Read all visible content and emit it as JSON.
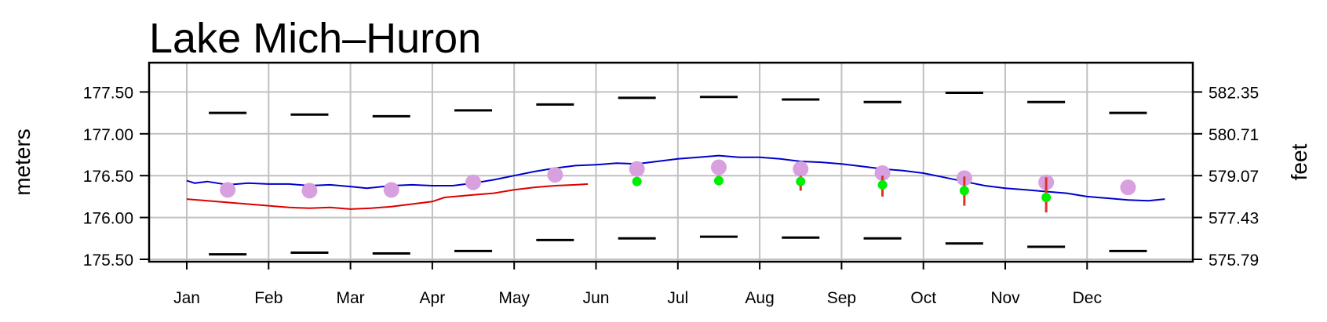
{
  "chart_data": {
    "type": "line",
    "title": "Lake Mich–Huron",
    "ylabel_left": "meters",
    "ylabel_right": "feet",
    "ylim": [
      175.5,
      177.85
    ],
    "y_ticks_left": [
      "177.50",
      "177.00",
      "176.50",
      "176.00",
      "175.50"
    ],
    "y_ticks_left_values": [
      177.5,
      177.0,
      176.5,
      176.0,
      175.5
    ],
    "y_ticks_right": [
      "582.35",
      "580.71",
      "579.07",
      "577.43",
      "575.79"
    ],
    "months": [
      "Jan",
      "Feb",
      "Mar",
      "Apr",
      "May",
      "Jun",
      "Jul",
      "Aug",
      "Sep",
      "Oct",
      "Nov",
      "Dec"
    ],
    "grid": true,
    "series": [
      {
        "kind": "line",
        "color": "#0000cc",
        "points": [
          [
            0.0,
            176.44
          ],
          [
            0.1,
            176.41
          ],
          [
            0.25,
            176.43
          ],
          [
            0.5,
            176.39
          ],
          [
            0.75,
            176.41
          ],
          [
            1.0,
            176.4
          ],
          [
            1.25,
            176.4
          ],
          [
            1.5,
            176.38
          ],
          [
            1.75,
            176.39
          ],
          [
            2.0,
            176.37
          ],
          [
            2.2,
            176.35
          ],
          [
            2.5,
            176.38
          ],
          [
            2.75,
            176.39
          ],
          [
            3.0,
            176.38
          ],
          [
            3.25,
            176.38
          ],
          [
            3.5,
            176.41
          ],
          [
            3.75,
            176.45
          ],
          [
            4.0,
            176.5
          ],
          [
            4.25,
            176.55
          ],
          [
            4.5,
            176.59
          ],
          [
            4.75,
            176.62
          ],
          [
            5.0,
            176.63
          ],
          [
            5.25,
            176.65
          ],
          [
            5.5,
            176.64
          ],
          [
            5.75,
            176.67
          ],
          [
            6.0,
            176.7
          ],
          [
            6.25,
            176.72
          ],
          [
            6.5,
            176.74
          ],
          [
            6.75,
            176.72
          ],
          [
            7.0,
            176.72
          ],
          [
            7.25,
            176.7
          ],
          [
            7.5,
            176.67
          ],
          [
            7.75,
            176.66
          ],
          [
            8.0,
            176.64
          ],
          [
            8.25,
            176.61
          ],
          [
            8.5,
            176.58
          ],
          [
            8.75,
            176.56
          ],
          [
            9.0,
            176.53
          ],
          [
            9.25,
            176.48
          ],
          [
            9.5,
            176.43
          ],
          [
            9.75,
            176.38
          ],
          [
            10.0,
            176.35
          ],
          [
            10.25,
            176.33
          ],
          [
            10.5,
            176.31
          ],
          [
            10.75,
            176.29
          ],
          [
            11.0,
            176.25
          ],
          [
            11.25,
            176.23
          ],
          [
            11.5,
            176.21
          ],
          [
            11.75,
            176.2
          ],
          [
            11.95,
            176.22
          ]
        ]
      },
      {
        "kind": "line",
        "color": "#dd0000",
        "points": [
          [
            0.0,
            176.22
          ],
          [
            0.25,
            176.2
          ],
          [
            0.5,
            176.18
          ],
          [
            0.75,
            176.16
          ],
          [
            1.0,
            176.14
          ],
          [
            1.25,
            176.12
          ],
          [
            1.5,
            176.11
          ],
          [
            1.75,
            176.12
          ],
          [
            2.0,
            176.1
          ],
          [
            2.25,
            176.11
          ],
          [
            2.5,
            176.13
          ],
          [
            2.75,
            176.16
          ],
          [
            3.0,
            176.19
          ],
          [
            3.15,
            176.24
          ],
          [
            3.5,
            176.27
          ],
          [
            3.75,
            176.29
          ],
          [
            4.0,
            176.33
          ],
          [
            4.25,
            176.36
          ],
          [
            4.5,
            176.38
          ],
          [
            4.75,
            176.39
          ],
          [
            4.9,
            176.4
          ]
        ]
      }
    ],
    "upper_range": [
      177.25,
      177.23,
      177.21,
      177.28,
      177.35,
      177.43,
      177.44,
      177.41,
      177.38,
      177.49,
      177.38,
      177.25
    ],
    "lower_range": [
      175.56,
      175.58,
      175.57,
      175.6,
      175.73,
      175.75,
      175.77,
      175.76,
      175.75,
      175.69,
      175.65,
      175.6
    ],
    "monthly_average": [
      176.33,
      176.32,
      176.33,
      176.42,
      176.51,
      176.58,
      176.6,
      176.58,
      176.53,
      176.47,
      176.42,
      176.36
    ],
    "forecast": [
      {
        "month_index": 5,
        "value": 176.43,
        "low": 176.42,
        "high": 176.45
      },
      {
        "month_index": 6,
        "value": 176.44,
        "low": 176.41,
        "high": 176.5
      },
      {
        "month_index": 7,
        "value": 176.43,
        "low": 176.32,
        "high": 176.5
      },
      {
        "month_index": 8,
        "value": 176.39,
        "low": 176.25,
        "high": 176.5
      },
      {
        "month_index": 9,
        "value": 176.32,
        "low": 176.14,
        "high": 176.49
      },
      {
        "month_index": 10,
        "value": 176.24,
        "low": 176.06,
        "high": 176.48
      }
    ],
    "colors": {
      "range": "#000000",
      "monthly_average": "#d9a0e0",
      "forecast_point": "#00ee00",
      "forecast_bar": "#dd3322",
      "grid": "#c0c0c0"
    }
  }
}
